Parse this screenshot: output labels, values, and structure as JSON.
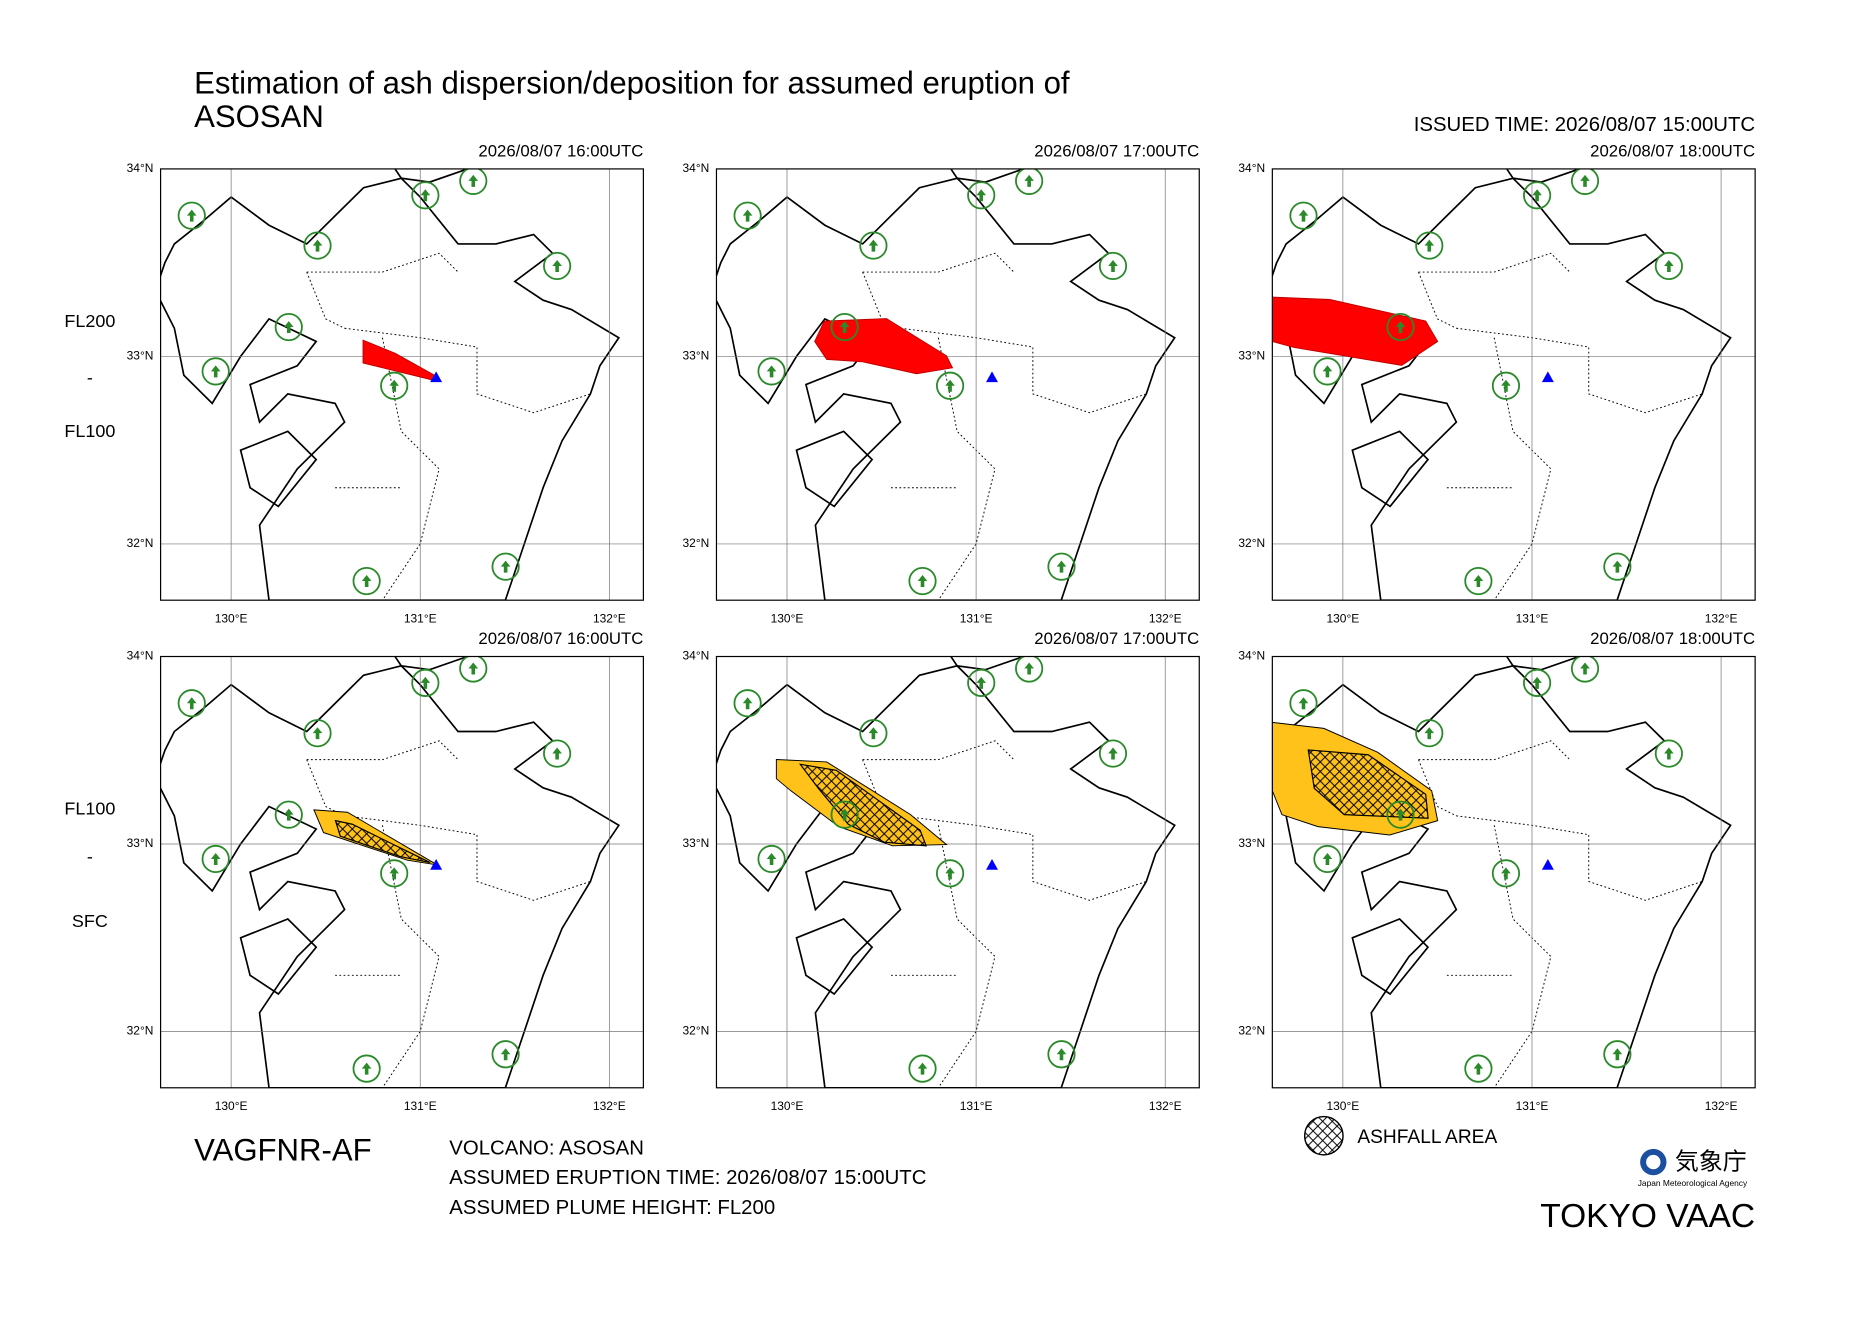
{
  "title": [
    "Estimation of ash dispersion/deposition for assumed eruption of",
    "ASOSAN"
  ],
  "issued_time": "ISSUED TIME: 2026/08/07 15:00UTC",
  "map": {
    "xlim": [
      129.627,
      132.18
    ],
    "ylim": [
      31.7,
      34.0
    ],
    "xticks": [
      {
        "value": 130,
        "label": "130°E"
      },
      {
        "value": 131,
        "label": "131°E"
      },
      {
        "value": 132,
        "label": "132°E"
      }
    ],
    "yticks": [
      {
        "value": 32,
        "label": "32°N"
      },
      {
        "value": 33,
        "label": "33°N"
      },
      {
        "value": 34,
        "label": "34°N"
      }
    ]
  },
  "rows": [
    {
      "levels": [
        "FL200",
        "-",
        "FL100"
      ],
      "panels": [
        {
          "time": "2026/08/07 16:00UTC"
        },
        {
          "time": "2026/08/07 17:00UTC"
        },
        {
          "time": "2026/08/07 18:00UTC"
        }
      ]
    },
    {
      "levels": [
        "FL100",
        "-",
        "SFC"
      ],
      "panels": [
        {
          "time": "2026/08/07 16:00UTC"
        },
        {
          "time": "2026/08/07 17:00UTC"
        },
        {
          "time": "2026/08/07 18:00UTC"
        }
      ]
    }
  ],
  "footer": {
    "product": "VAGFNR-AF",
    "info": [
      "VOLCANO: ASOSAN",
      "ASSUMED ERUPTION TIME: 2026/08/07 15:00UTC",
      "ASSUMED PLUME HEIGHT: FL200"
    ],
    "legend": "ASHFALL AREA",
    "agency": "気象庁",
    "agency_en": "Japan Meteorological Agency",
    "center": "TOKYO VAAC"
  }
}
